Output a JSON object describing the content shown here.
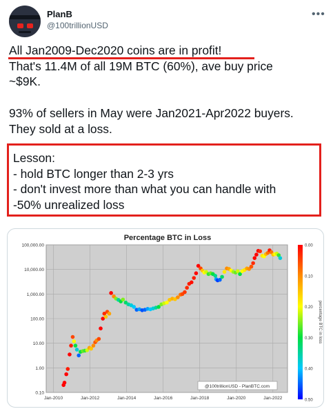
{
  "user": {
    "display_name": "PlanB",
    "handle": "@100trillionUSD",
    "avatar_icon": "robot-avatar-icon"
  },
  "more_icon": "more-options-icon",
  "tweet": {
    "line1": "All Jan2009-Dec2020 coins are in profit!",
    "rest": "That's 11.4M of all 19M BTC (60%), ave buy price\n~$9K.\n\n93% of sellers in May were Jan2021-Apr2022 buyers.\nThey sold at a loss.",
    "lesson": "Lesson:\n- hold BTC longer than 2-3 yrs\n- don't invest more than what you can handle with\n-50% unrealized loss",
    "highlight_color": "#e3201c"
  },
  "chart_data": {
    "type": "scatter",
    "title": "Percentage BTC in Loss",
    "watermark": "@100trillionUSD - PlanBTC.com",
    "y_scale": "log",
    "ylim": [
      0.1,
      100000
    ],
    "y_ticks": [
      "0.10",
      "1.00",
      "10.00",
      "100.00",
      "1,000.00",
      "10,000.00",
      "100,000.00"
    ],
    "xlim": [
      2009.6,
      2022.8
    ],
    "x_ticks": [
      {
        "value": 2010,
        "label": "Jan-2010"
      },
      {
        "value": 2012,
        "label": "Jan-2012"
      },
      {
        "value": 2014,
        "label": "Jan-2014"
      },
      {
        "value": 2016,
        "label": "Jan-2016"
      },
      {
        "value": 2018,
        "label": "Jan-2018"
      },
      {
        "value": 2020,
        "label": "Jan-2020"
      },
      {
        "value": 2022,
        "label": "Jan-2022"
      }
    ],
    "colorbar": {
      "label": "percentage BTC in loss",
      "ticks": [
        "0.00",
        "0.10",
        "0.20",
        "0.30",
        "0.40",
        "0.50"
      ],
      "range": [
        0,
        0.5
      ]
    },
    "grid": true,
    "points": [
      {
        "x": 2010.55,
        "y": 0.2,
        "c": 0.0
      },
      {
        "x": 2010.6,
        "y": 0.25,
        "c": 0.0
      },
      {
        "x": 2010.7,
        "y": 0.55,
        "c": 0.0
      },
      {
        "x": 2010.78,
        "y": 0.9,
        "c": 0.02
      },
      {
        "x": 2010.88,
        "y": 3.5,
        "c": 0.0
      },
      {
        "x": 2010.96,
        "y": 8,
        "c": 0.02
      },
      {
        "x": 2011.05,
        "y": 18,
        "c": 0.05
      },
      {
        "x": 2011.12,
        "y": 12,
        "c": 0.2
      },
      {
        "x": 2011.2,
        "y": 8,
        "c": 0.3
      },
      {
        "x": 2011.28,
        "y": 5.5,
        "c": 0.38
      },
      {
        "x": 2011.38,
        "y": 3.2,
        "c": 0.45
      },
      {
        "x": 2011.48,
        "y": 4.5,
        "c": 0.3
      },
      {
        "x": 2011.6,
        "y": 4.8,
        "c": 0.26
      },
      {
        "x": 2011.72,
        "y": 5,
        "c": 0.28
      },
      {
        "x": 2011.84,
        "y": 5.2,
        "c": 0.22
      },
      {
        "x": 2011.96,
        "y": 6.5,
        "c": 0.12
      },
      {
        "x": 2012.06,
        "y": 6,
        "c": 0.15
      },
      {
        "x": 2012.18,
        "y": 8,
        "c": 0.1
      },
      {
        "x": 2012.28,
        "y": 11,
        "c": 0.06
      },
      {
        "x": 2012.36,
        "y": 13,
        "c": 0.1
      },
      {
        "x": 2012.48,
        "y": 15,
        "c": 0.05
      },
      {
        "x": 2012.58,
        "y": 40,
        "c": 0.0
      },
      {
        "x": 2012.7,
        "y": 100,
        "c": 0.0
      },
      {
        "x": 2012.78,
        "y": 160,
        "c": 0.03
      },
      {
        "x": 2012.86,
        "y": 120,
        "c": 0.15
      },
      {
        "x": 2012.94,
        "y": 190,
        "c": 0.05
      },
      {
        "x": 2013.05,
        "y": 160,
        "c": 0.12
      },
      {
        "x": 2013.15,
        "y": 1100,
        "c": 0.0
      },
      {
        "x": 2013.3,
        "y": 800,
        "c": 0.1
      },
      {
        "x": 2013.42,
        "y": 650,
        "c": 0.25
      },
      {
        "x": 2013.55,
        "y": 580,
        "c": 0.35
      },
      {
        "x": 2013.68,
        "y": 500,
        "c": 0.3
      },
      {
        "x": 2013.8,
        "y": 600,
        "c": 0.25
      },
      {
        "x": 2013.95,
        "y": 450,
        "c": 0.32
      },
      {
        "x": 2014.1,
        "y": 380,
        "c": 0.35
      },
      {
        "x": 2014.25,
        "y": 350,
        "c": 0.38
      },
      {
        "x": 2014.4,
        "y": 300,
        "c": 0.4
      },
      {
        "x": 2014.55,
        "y": 230,
        "c": 0.45
      },
      {
        "x": 2014.7,
        "y": 240,
        "c": 0.42
      },
      {
        "x": 2014.85,
        "y": 220,
        "c": 0.46
      },
      {
        "x": 2015.0,
        "y": 230,
        "c": 0.45
      },
      {
        "x": 2015.15,
        "y": 250,
        "c": 0.42
      },
      {
        "x": 2015.3,
        "y": 240,
        "c": 0.4
      },
      {
        "x": 2015.45,
        "y": 260,
        "c": 0.38
      },
      {
        "x": 2015.6,
        "y": 280,
        "c": 0.35
      },
      {
        "x": 2015.75,
        "y": 300,
        "c": 0.3
      },
      {
        "x": 2015.9,
        "y": 380,
        "c": 0.25
      },
      {
        "x": 2016.05,
        "y": 420,
        "c": 0.22
      },
      {
        "x": 2016.2,
        "y": 450,
        "c": 0.2
      },
      {
        "x": 2016.35,
        "y": 580,
        "c": 0.15
      },
      {
        "x": 2016.5,
        "y": 650,
        "c": 0.13
      },
      {
        "x": 2016.65,
        "y": 620,
        "c": 0.15
      },
      {
        "x": 2016.8,
        "y": 740,
        "c": 0.1
      },
      {
        "x": 2016.95,
        "y": 950,
        "c": 0.08
      },
      {
        "x": 2017.05,
        "y": 1000,
        "c": 0.05
      },
      {
        "x": 2017.18,
        "y": 1200,
        "c": 0.04
      },
      {
        "x": 2017.3,
        "y": 1800,
        "c": 0.03
      },
      {
        "x": 2017.42,
        "y": 2600,
        "c": 0.02
      },
      {
        "x": 2017.55,
        "y": 3000,
        "c": 0.01
      },
      {
        "x": 2017.68,
        "y": 4500,
        "c": 0.02
      },
      {
        "x": 2017.8,
        "y": 7000,
        "c": 0.0
      },
      {
        "x": 2017.92,
        "y": 14000,
        "c": 0.0
      },
      {
        "x": 2018.05,
        "y": 11000,
        "c": 0.05
      },
      {
        "x": 2018.15,
        "y": 9000,
        "c": 0.15
      },
      {
        "x": 2018.25,
        "y": 7500,
        "c": 0.2
      },
      {
        "x": 2018.35,
        "y": 8000,
        "c": 0.22
      },
      {
        "x": 2018.48,
        "y": 6500,
        "c": 0.28
      },
      {
        "x": 2018.6,
        "y": 7000,
        "c": 0.26
      },
      {
        "x": 2018.72,
        "y": 6500,
        "c": 0.3
      },
      {
        "x": 2018.85,
        "y": 5500,
        "c": 0.34
      },
      {
        "x": 2018.9,
        "y": 4000,
        "c": 0.42
      },
      {
        "x": 2018.98,
        "y": 3600,
        "c": 0.47
      },
      {
        "x": 2019.1,
        "y": 3800,
        "c": 0.45
      },
      {
        "x": 2019.22,
        "y": 5000,
        "c": 0.32
      },
      {
        "x": 2019.35,
        "y": 8000,
        "c": 0.18
      },
      {
        "x": 2019.48,
        "y": 11000,
        "c": 0.1
      },
      {
        "x": 2019.6,
        "y": 10500,
        "c": 0.12
      },
      {
        "x": 2019.72,
        "y": 9000,
        "c": 0.2
      },
      {
        "x": 2019.84,
        "y": 8000,
        "c": 0.24
      },
      {
        "x": 2019.96,
        "y": 7500,
        "c": 0.26
      },
      {
        "x": 2020.08,
        "y": 8500,
        "c": 0.22
      },
      {
        "x": 2020.2,
        "y": 6500,
        "c": 0.3
      },
      {
        "x": 2020.32,
        "y": 8500,
        "c": 0.2
      },
      {
        "x": 2020.45,
        "y": 9500,
        "c": 0.18
      },
      {
        "x": 2020.58,
        "y": 11000,
        "c": 0.12
      },
      {
        "x": 2020.7,
        "y": 10500,
        "c": 0.1
      },
      {
        "x": 2020.82,
        "y": 13000,
        "c": 0.06
      },
      {
        "x": 2020.92,
        "y": 18000,
        "c": 0.03
      },
      {
        "x": 2021.0,
        "y": 29000,
        "c": 0.0
      },
      {
        "x": 2021.1,
        "y": 40000,
        "c": 0.0
      },
      {
        "x": 2021.2,
        "y": 57000,
        "c": 0.0
      },
      {
        "x": 2021.3,
        "y": 55000,
        "c": 0.03
      },
      {
        "x": 2021.42,
        "y": 36000,
        "c": 0.18
      },
      {
        "x": 2021.52,
        "y": 34000,
        "c": 0.2
      },
      {
        "x": 2021.62,
        "y": 42000,
        "c": 0.14
      },
      {
        "x": 2021.72,
        "y": 47000,
        "c": 0.08
      },
      {
        "x": 2021.82,
        "y": 60000,
        "c": 0.02
      },
      {
        "x": 2021.92,
        "y": 50000,
        "c": 0.08
      },
      {
        "x": 2022.02,
        "y": 40000,
        "c": 0.15
      },
      {
        "x": 2022.12,
        "y": 42000,
        "c": 0.2
      },
      {
        "x": 2022.22,
        "y": 44000,
        "c": 0.22
      },
      {
        "x": 2022.32,
        "y": 38000,
        "c": 0.28
      },
      {
        "x": 2022.4,
        "y": 29000,
        "c": 0.38
      }
    ]
  }
}
